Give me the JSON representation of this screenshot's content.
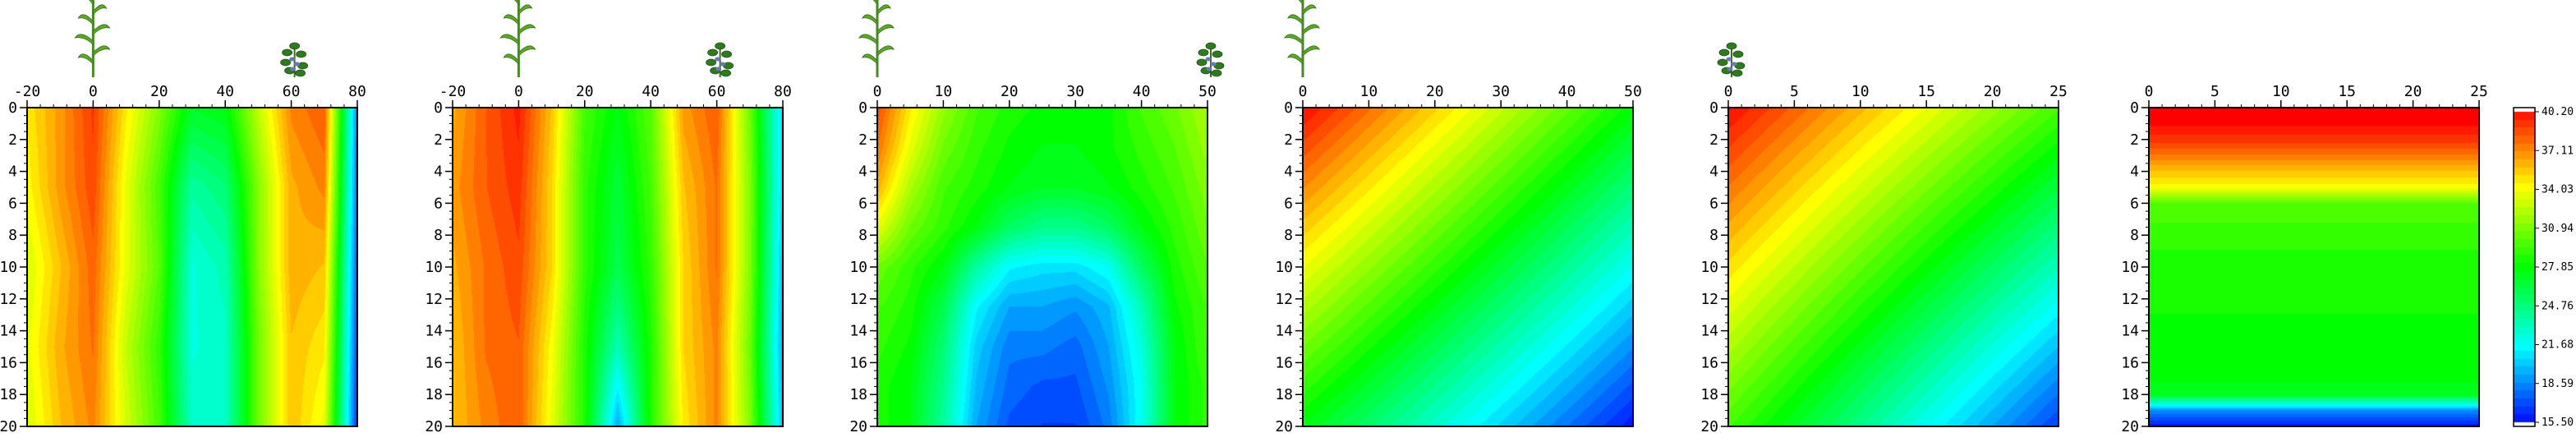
{
  "chart_data": [
    {
      "type": "heatmap",
      "id": "panel-1",
      "icons": [
        "corn-plant-icon",
        "soybean-plant-icon"
      ],
      "icon_x": [
        0,
        60
      ],
      "xlim": [
        -20,
        80
      ],
      "x_ticks": [
        -20,
        0,
        20,
        40,
        60,
        80
      ],
      "ylim": [
        0,
        20
      ],
      "y_ticks": [
        0,
        2,
        4,
        6,
        8,
        10,
        12,
        14,
        16,
        18,
        20
      ],
      "y_inverted": true,
      "x_grid": [
        -20,
        -10,
        0,
        10,
        20,
        30,
        40,
        50,
        60,
        70,
        80
      ],
      "y_grid": [
        0,
        5,
        10,
        15,
        20
      ],
      "values": [
        [
          34.5,
          36.5,
          38.8,
          34.5,
          31.0,
          27.0,
          27.5,
          32.5,
          37.0,
          38.0,
          18.5
        ],
        [
          34.0,
          36.5,
          38.5,
          33.5,
          29.5,
          24.0,
          25.0,
          31.0,
          36.0,
          37.0,
          18.0
        ],
        [
          33.0,
          35.5,
          37.8,
          33.5,
          30.0,
          22.5,
          23.5,
          31.0,
          36.0,
          35.5,
          17.5
        ],
        [
          33.5,
          36.0,
          37.5,
          32.5,
          29.0,
          22.5,
          23.0,
          30.5,
          35.5,
          34.5,
          17.0
        ],
        [
          33.0,
          35.5,
          37.0,
          33.0,
          29.5,
          23.0,
          23.0,
          30.5,
          35.5,
          33.5,
          16.5
        ]
      ]
    },
    {
      "type": "heatmap",
      "id": "panel-2",
      "icons": [
        "corn-plant-icon",
        "soybean-plant-icon"
      ],
      "icon_x": [
        0,
        60
      ],
      "xlim": [
        -20,
        80
      ],
      "x_ticks": [
        -20,
        0,
        20,
        40,
        60,
        80
      ],
      "ylim": [
        0,
        20
      ],
      "y_ticks": [
        0,
        2,
        4,
        6,
        8,
        10,
        12,
        14,
        16,
        18,
        20
      ],
      "y_inverted": true,
      "x_grid": [
        -20,
        -10,
        0,
        10,
        20,
        30,
        40,
        50,
        60,
        70,
        80
      ],
      "y_grid": [
        0,
        5,
        10,
        15,
        20
      ],
      "values": [
        [
          36.0,
          38.0,
          39.5,
          35.5,
          29.5,
          27.5,
          30.0,
          36.5,
          38.0,
          30.5,
          20.5
        ],
        [
          36.5,
          38.0,
          39.0,
          35.0,
          29.0,
          26.5,
          29.5,
          35.5,
          37.5,
          31.0,
          20.5
        ],
        [
          36.0,
          37.5,
          38.5,
          35.0,
          29.0,
          26.0,
          29.0,
          35.0,
          37.5,
          31.0,
          20.0
        ],
        [
          35.5,
          37.5,
          38.0,
          34.0,
          28.5,
          23.5,
          28.5,
          35.0,
          37.0,
          30.5,
          19.5
        ],
        [
          35.5,
          37.0,
          38.0,
          33.5,
          28.5,
          19.5,
          28.5,
          34.5,
          37.0,
          31.0,
          20.0
        ]
      ]
    },
    {
      "type": "heatmap",
      "id": "panel-3",
      "icons": [
        "corn-plant-icon",
        "soybean-plant-icon"
      ],
      "icon_x": [
        0,
        50
      ],
      "xlim": [
        0,
        50
      ],
      "x_ticks": [
        0,
        10,
        20,
        30,
        40,
        50
      ],
      "ylim": [
        0,
        20
      ],
      "y_ticks": [
        0,
        2,
        4,
        6,
        8,
        10,
        12,
        14,
        16,
        18,
        20
      ],
      "y_inverted": true,
      "x_grid": [
        0,
        5,
        10,
        15,
        20,
        25,
        30,
        35,
        40,
        45,
        50
      ],
      "y_grid": [
        0,
        2.5,
        5,
        7.5,
        10,
        12.5,
        15,
        17.5,
        20
      ],
      "values": [
        [
          38.5,
          34.5,
          31.5,
          29.5,
          28.5,
          28.0,
          28.0,
          28.0,
          29.5,
          30.5,
          32.0
        ],
        [
          37.5,
          33.5,
          30.5,
          29.0,
          28.0,
          27.5,
          27.5,
          28.0,
          29.0,
          30.0,
          31.5
        ],
        [
          36.0,
          32.0,
          29.5,
          28.5,
          27.5,
          27.0,
          27.0,
          27.5,
          28.5,
          29.5,
          31.0
        ],
        [
          33.5,
          30.5,
          29.0,
          27.5,
          25.5,
          24.5,
          24.5,
          25.5,
          27.5,
          29.0,
          30.5
        ],
        [
          30.5,
          29.0,
          27.5,
          24.0,
          21.5,
          21.0,
          21.0,
          22.0,
          25.5,
          28.5,
          30.0
        ],
        [
          29.5,
          28.5,
          26.0,
          21.5,
          19.5,
          19.5,
          19.0,
          20.0,
          23.5,
          28.0,
          29.5
        ],
        [
          29.0,
          28.0,
          25.0,
          20.5,
          18.5,
          18.5,
          18.0,
          19.5,
          22.5,
          27.5,
          29.5
        ],
        [
          28.5,
          27.5,
          24.5,
          20.0,
          18.0,
          17.5,
          17.5,
          19.0,
          22.0,
          27.5,
          29.0
        ],
        [
          28.5,
          27.5,
          24.0,
          19.5,
          17.5,
          17.0,
          17.0,
          18.5,
          22.0,
          27.5,
          29.0
        ]
      ]
    },
    {
      "type": "heatmap",
      "id": "panel-4",
      "icons": [
        "corn-plant-icon"
      ],
      "icon_x": [
        0
      ],
      "xlim": [
        0,
        50
      ],
      "x_ticks": [
        0,
        10,
        20,
        30,
        40,
        50
      ],
      "ylim": [
        0,
        20
      ],
      "y_ticks": [
        0,
        2,
        4,
        6,
        8,
        10,
        12,
        14,
        16,
        18,
        20
      ],
      "y_inverted": true,
      "x_grid": [
        0,
        50
      ],
      "y_grid": [
        0,
        20
      ],
      "values": [
        [
          40.0,
          27.8
        ],
        [
          27.5,
          16.0
        ]
      ]
    },
    {
      "type": "heatmap",
      "id": "panel-5",
      "icons": [
        "soybean-plant-icon"
      ],
      "icon_x": [
        0
      ],
      "xlim": [
        0,
        25
      ],
      "x_ticks": [
        0,
        5,
        10,
        15,
        20,
        25
      ],
      "ylim": [
        0,
        20
      ],
      "y_ticks": [
        0,
        2,
        4,
        6,
        8,
        10,
        12,
        14,
        16,
        18,
        20
      ],
      "y_inverted": true,
      "x_grid": [
        0,
        25
      ],
      "y_grid": [
        0,
        20
      ],
      "values": [
        [
          40.0,
          29.5
        ],
        [
          29.5,
          17.0
        ]
      ]
    },
    {
      "type": "heatmap",
      "id": "panel-6",
      "icons": [],
      "icon_x": [],
      "xlim": [
        0,
        25
      ],
      "x_ticks": [
        0,
        5,
        10,
        15,
        20,
        25
      ],
      "ylim": [
        0,
        20
      ],
      "y_ticks": [
        0,
        2,
        4,
        6,
        8,
        10,
        12,
        14,
        16,
        18,
        20
      ],
      "y_inverted": true,
      "x_grid": [
        0,
        25
      ],
      "y_grid": [
        0,
        1,
        2,
        3,
        4,
        5,
        6,
        8,
        10,
        12,
        14,
        16,
        17,
        18,
        19,
        20
      ],
      "values": [
        [
          40.2,
          40.2
        ],
        [
          40.0,
          40.0
        ],
        [
          39.0,
          39.0
        ],
        [
          37.3,
          37.3
        ],
        [
          35.5,
          35.5
        ],
        [
          34.0,
          34.0
        ],
        [
          30.0,
          30.0
        ],
        [
          29.0,
          29.0
        ],
        [
          28.5,
          28.5
        ],
        [
          28.3,
          28.3
        ],
        [
          28.0,
          28.0
        ],
        [
          27.8,
          27.8
        ],
        [
          27.6,
          27.6
        ],
        [
          27.3,
          27.3
        ],
        [
          19.0,
          19.0
        ],
        [
          16.0,
          16.0
        ]
      ]
    }
  ],
  "colorbar": {
    "min": 15.5,
    "max": 40.2,
    "tick_labels": [
      "40.20",
      "37.11",
      "34.03",
      "30.94",
      "27.85",
      "24.76",
      "21.68",
      "18.59",
      "15.50"
    ]
  }
}
